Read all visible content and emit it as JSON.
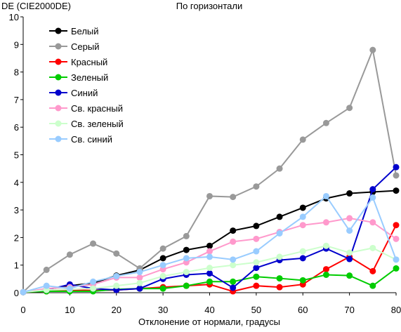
{
  "chart_data": {
    "type": "line",
    "title": "По горизонтали",
    "ylabel": "DE (CIE2000DE)",
    "xlabel": "Отклонение от нормали, градусы",
    "xlim": [
      0,
      80
    ],
    "ylim": [
      0,
      10
    ],
    "xticks": [
      0,
      10,
      20,
      30,
      40,
      50,
      60,
      70,
      80
    ],
    "yticks": [
      0,
      1,
      2,
      3,
      4,
      5,
      6,
      7,
      8,
      9,
      10
    ],
    "grid": false,
    "legend_position": "top-left",
    "x": [
      0,
      5,
      10,
      15,
      20,
      25,
      30,
      35,
      40,
      45,
      50,
      55,
      60,
      65,
      70,
      75,
      80
    ],
    "series": [
      {
        "name": "Белый",
        "color": "#000000",
        "values": [
          0.02,
          0.12,
          0.25,
          0.35,
          0.62,
          0.82,
          1.25,
          1.55,
          1.7,
          2.25,
          2.42,
          2.75,
          3.08,
          3.42,
          3.6,
          3.65,
          3.7
        ]
      },
      {
        "name": "Серый",
        "color": "#999999",
        "values": [
          0.02,
          0.83,
          1.38,
          1.78,
          1.42,
          0.88,
          1.6,
          2.05,
          3.5,
          3.47,
          3.85,
          4.5,
          5.55,
          6.15,
          6.7,
          8.8,
          4.25
        ]
      },
      {
        "name": "Красный",
        "color": "#ff0000",
        "values": [
          0.02,
          0.05,
          0.1,
          0.08,
          0.1,
          0.15,
          0.2,
          0.25,
          0.3,
          0.05,
          0.25,
          0.2,
          0.3,
          0.85,
          1.3,
          0.78,
          2.45
        ]
      },
      {
        "name": "Зеленый",
        "color": "#00cc00",
        "values": [
          0.02,
          0.05,
          0.05,
          0.05,
          0.12,
          0.15,
          0.15,
          0.25,
          0.4,
          0.4,
          0.58,
          0.52,
          0.45,
          0.65,
          0.62,
          0.25,
          0.88
        ]
      },
      {
        "name": "Синий",
        "color": "#0000cc",
        "values": [
          0.02,
          0.1,
          0.3,
          0.15,
          0.1,
          0.15,
          0.5,
          0.65,
          0.7,
          0.18,
          0.9,
          1.18,
          1.25,
          1.6,
          1.22,
          3.75,
          4.55
        ]
      },
      {
        "name": "Св. красный",
        "color": "#ff99cc",
        "values": [
          0.02,
          0.15,
          0.2,
          0.3,
          0.55,
          0.55,
          0.85,
          1.1,
          1.5,
          1.85,
          1.95,
          2.2,
          2.45,
          2.55,
          2.7,
          2.55,
          1.95
        ]
      },
      {
        "name": "Св. зеленый",
        "color": "#ccffcc",
        "values": [
          0.02,
          0.1,
          0.12,
          0.15,
          0.25,
          0.35,
          0.6,
          0.75,
          0.9,
          1.0,
          1.1,
          1.3,
          1.5,
          1.7,
          1.45,
          1.62,
          1.2
        ]
      },
      {
        "name": "Св. синий",
        "color": "#99ccff",
        "values": [
          0.02,
          0.25,
          0.15,
          0.4,
          0.6,
          0.75,
          1.0,
          1.25,
          1.3,
          1.2,
          1.5,
          2.15,
          2.75,
          3.5,
          2.25,
          3.45,
          1.2
        ]
      }
    ]
  }
}
